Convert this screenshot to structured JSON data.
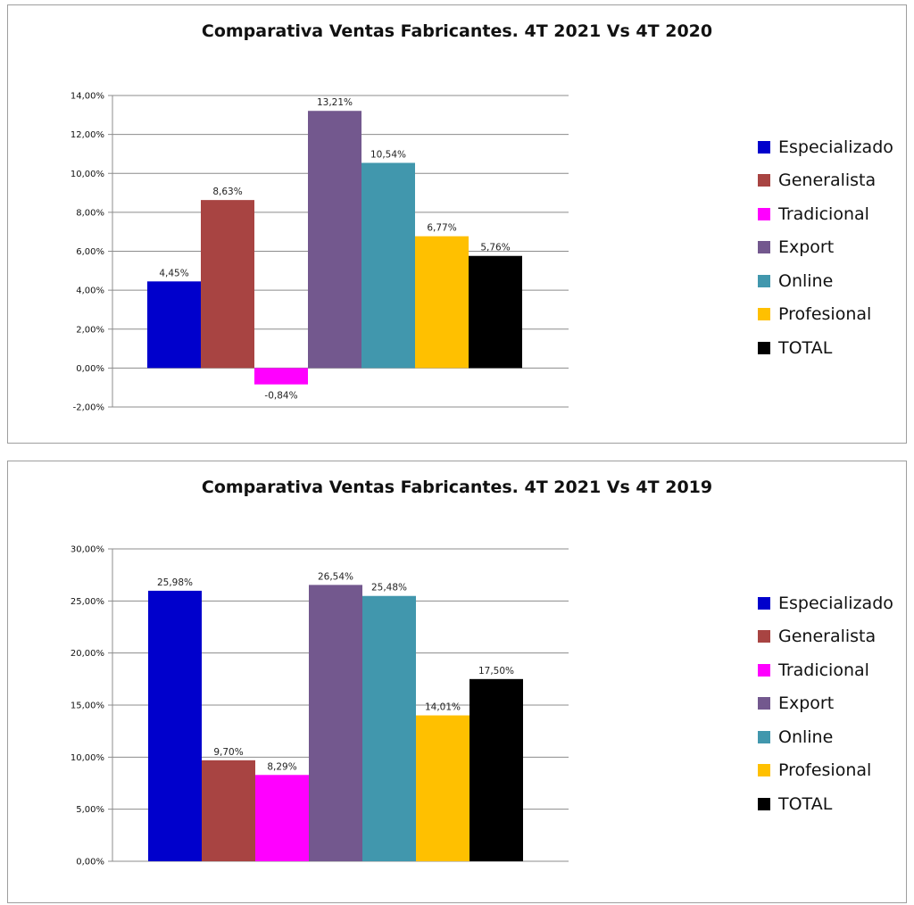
{
  "chart_data": [
    {
      "type": "bar",
      "title": "Comparativa Ventas Fabricantes. 4T 2021 Vs 4T 2020",
      "xlabel": "",
      "ylabel": "",
      "ylim": [
        -2,
        14
      ],
      "ytick_step": 2,
      "yticks": [
        "-2,00%",
        "0,00%",
        "2,00%",
        "4,00%",
        "6,00%",
        "8,00%",
        "10,00%",
        "12,00%",
        "14,00%"
      ],
      "grid": true,
      "legend": "right",
      "series": [
        {
          "name": "Especializado",
          "color": "#0000cc",
          "value": 4.45,
          "label": "4,45%"
        },
        {
          "name": "Generalista",
          "color": "#a84442",
          "value": 8.63,
          "label": "8,63%"
        },
        {
          "name": "Tradicional",
          "color": "#ff00ff",
          "value": -0.84,
          "label": "-0,84%"
        },
        {
          "name": "Export",
          "color": "#73588e",
          "value": 13.21,
          "label": "13,21%"
        },
        {
          "name": "Online",
          "color": "#4197ad",
          "value": 10.54,
          "label": "10,54%"
        },
        {
          "name": "Profesional",
          "color": "#ffc000",
          "value": 6.77,
          "label": "6,77%"
        },
        {
          "name": "TOTAL",
          "color": "#000000",
          "value": 5.76,
          "label": "5,76%"
        }
      ]
    },
    {
      "type": "bar",
      "title": "Comparativa Ventas Fabricantes. 4T 2021 Vs 4T 2019",
      "xlabel": "",
      "ylabel": "",
      "ylim": [
        0,
        30
      ],
      "ytick_step": 5,
      "yticks": [
        "0,00%",
        "5,00%",
        "10,00%",
        "15,00%",
        "20,00%",
        "25,00%",
        "30,00%"
      ],
      "grid": true,
      "legend": "right",
      "series": [
        {
          "name": "Especializado",
          "color": "#0000cc",
          "value": 25.98,
          "label": "25,98%"
        },
        {
          "name": "Generalista",
          "color": "#a84442",
          "value": 9.7,
          "label": "9,70%"
        },
        {
          "name": "Tradicional",
          "color": "#ff00ff",
          "value": 8.29,
          "label": "8,29%"
        },
        {
          "name": "Export",
          "color": "#73588e",
          "value": 26.54,
          "label": "26,54%"
        },
        {
          "name": "Online",
          "color": "#4197ad",
          "value": 25.48,
          "label": "25,48%"
        },
        {
          "name": "Profesional",
          "color": "#ffc000",
          "value": 14.01,
          "label": "14,01%"
        },
        {
          "name": "TOTAL",
          "color": "#000000",
          "value": 17.5,
          "label": "17,50%"
        }
      ]
    }
  ]
}
